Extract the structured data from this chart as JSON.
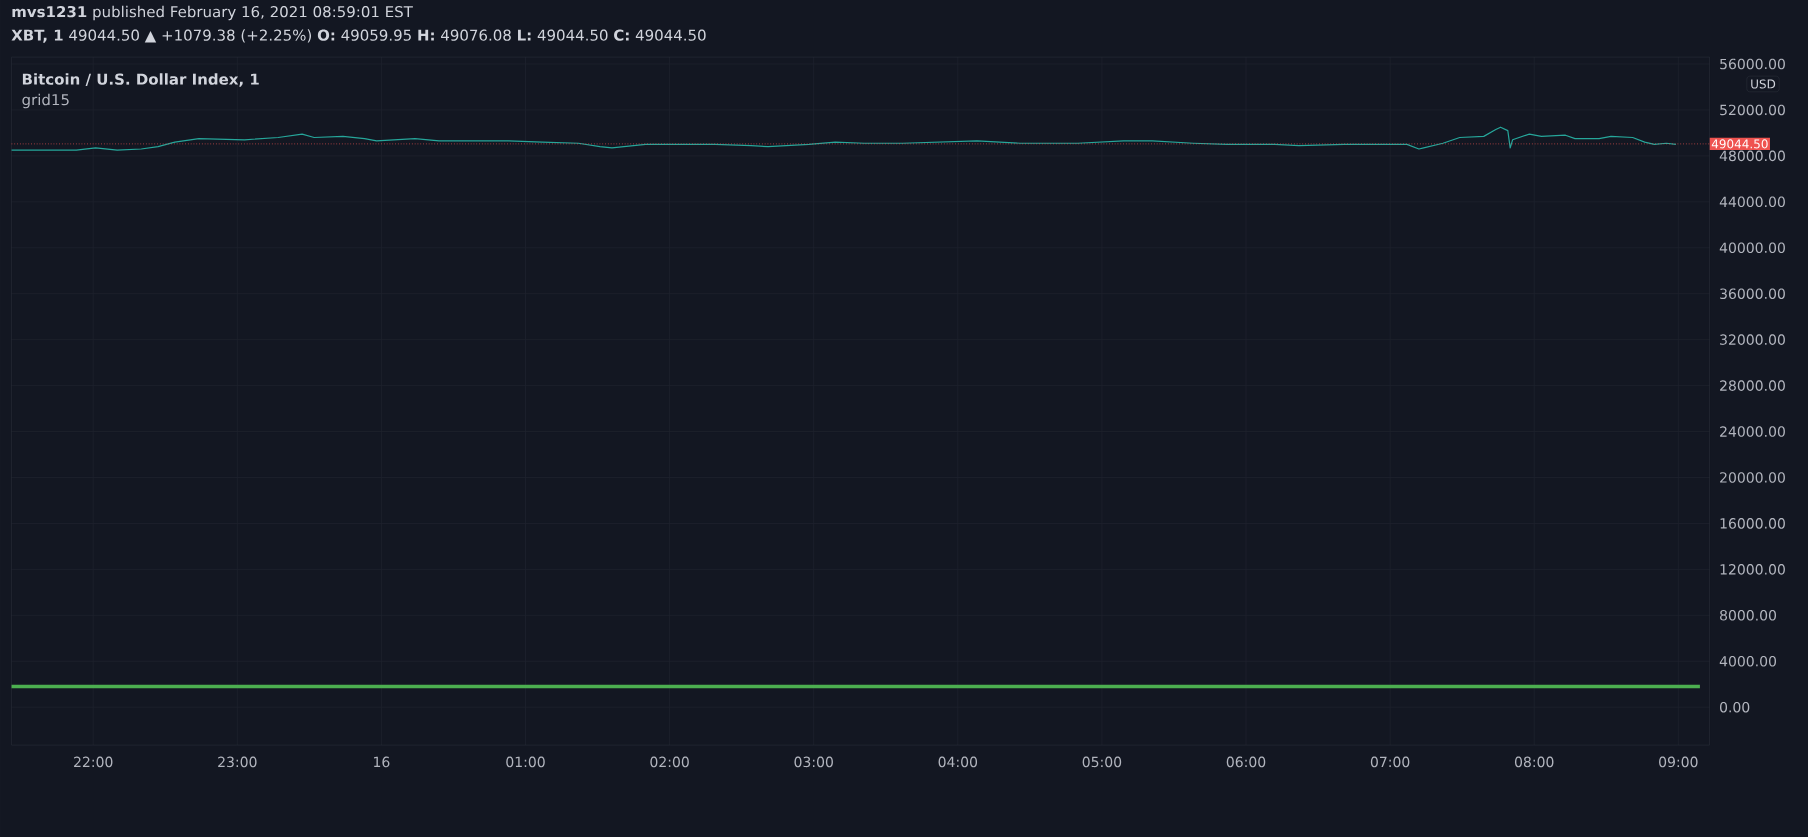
{
  "chart_data": {
    "type": "line",
    "title": "Bitcoin / U.S. Dollar Index, 1",
    "ylabel": "USD",
    "annotations": [
      "**mvs1231** published February 16, 2021 08:59:01 EST",
      "**XBT, 1** 49044.50 ▲ +1079.38 (+2.25%) **O:** 49059.95 **H:** 49076.08 **L:** 49044.50 **C:** 49044.50",
      "grid15"
    ],
    "xlim": [
      "2021-02-15T21:26",
      "2021-02-16T09:13"
    ],
    "ylim": [
      -3300,
      56600
    ],
    "xticks": [
      {
        "value": "2021-02-15T22:00",
        "label": "22:00"
      },
      {
        "value": "2021-02-15T23:00",
        "label": "23:00"
      },
      {
        "value": "2021-02-16T00:00",
        "label": "16"
      },
      {
        "value": "2021-02-16T01:00",
        "label": "01:00"
      },
      {
        "value": "2021-02-16T02:00",
        "label": "02:00"
      },
      {
        "value": "2021-02-16T03:00",
        "label": "03:00"
      },
      {
        "value": "2021-02-16T04:00",
        "label": "04:00"
      },
      {
        "value": "2021-02-16T05:00",
        "label": "05:00"
      },
      {
        "value": "2021-02-16T06:00",
        "label": "06:00"
      },
      {
        "value": "2021-02-16T07:00",
        "label": "07:00"
      },
      {
        "value": "2021-02-16T08:00",
        "label": "08:00"
      },
      {
        "value": "2021-02-16T09:00",
        "label": "09:00"
      }
    ],
    "yticks": [
      {
        "value": 0,
        "label": "0.00"
      },
      {
        "value": 4000,
        "label": "4000.00"
      },
      {
        "value": 8000,
        "label": "8000.00"
      },
      {
        "value": 12000,
        "label": "12000.00"
      },
      {
        "value": 16000,
        "label": "16000.00"
      },
      {
        "value": 20000,
        "label": "20000.00"
      },
      {
        "value": 24000,
        "label": "24000.00"
      },
      {
        "value": 28000,
        "label": "28000.00"
      },
      {
        "value": 32000,
        "label": "32000.00"
      },
      {
        "value": 36000,
        "label": "36000.00"
      },
      {
        "value": 40000,
        "label": "40000.00"
      },
      {
        "value": 44000,
        "label": "44000.00"
      },
      {
        "value": 48000,
        "label": "48000.00"
      },
      {
        "value": 52000,
        "label": "52000.00"
      },
      {
        "value": 56000,
        "label": "56000.00"
      }
    ],
    "grid": true,
    "ref_lines": [
      {
        "axis": "y",
        "value": 49044.5,
        "label": "49044.50",
        "color": "#ef5350",
        "line_style": "dotted"
      }
    ],
    "series": [
      {
        "color": "#26a69a",
        "x": [
          "2021-02-15T21:26",
          "2021-02-15T21:53",
          "2021-02-15T22:01",
          "2021-02-15T22:10",
          "2021-02-15T22:20",
          "2021-02-15T22:27",
          "2021-02-15T22:34",
          "2021-02-15T22:44",
          "2021-02-15T23:03",
          "2021-02-15T23:17",
          "2021-02-15T23:27",
          "2021-02-15T23:32",
          "2021-02-15T23:44",
          "2021-02-15T23:53",
          "2021-02-15T23:58",
          "2021-02-16T00:14",
          "2021-02-16T00:24",
          "2021-02-16T00:38",
          "2021-02-16T00:53",
          "2021-02-16T01:07",
          "2021-02-16T01:22",
          "2021-02-16T01:31",
          "2021-02-16T01:36",
          "2021-02-16T01:50",
          "2021-02-16T02:10",
          "2021-02-16T02:19",
          "2021-02-16T02:34",
          "2021-02-16T02:41",
          "2021-02-16T02:58",
          "2021-02-16T03:09",
          "2021-02-16T03:21",
          "2021-02-16T03:37",
          "2021-02-16T04:08",
          "2021-02-16T04:26",
          "2021-02-16T04:50",
          "2021-02-16T05:09",
          "2021-02-16T05:21",
          "2021-02-16T05:38",
          "2021-02-16T05:52",
          "2021-02-16T06:12",
          "2021-02-16T06:22",
          "2021-02-16T06:41",
          "2021-02-16T07:07",
          "2021-02-16T07:12",
          "2021-02-16T07:14",
          "2021-02-16T07:22",
          "2021-02-16T07:29",
          "2021-02-16T07:39",
          "2021-02-16T07:44",
          "2021-02-16T07:46",
          "2021-02-16T07:49",
          "2021-02-16T07:50",
          "2021-02-16T07:51",
          "2021-02-16T07:58",
          "2021-02-16T08:03",
          "2021-02-16T08:13",
          "2021-02-16T08:17",
          "2021-02-16T08:27",
          "2021-02-16T08:32",
          "2021-02-16T08:41",
          "2021-02-16T08:46",
          "2021-02-16T08:50",
          "2021-02-16T08:55",
          "2021-02-16T08:59"
        ],
        "values": [
          48500,
          48500,
          48700,
          48500,
          48600,
          48800,
          49200,
          49500,
          49400,
          49600,
          49900,
          49600,
          49700,
          49500,
          49300,
          49500,
          49300,
          49300,
          49300,
          49200,
          49100,
          48800,
          48700,
          49000,
          49000,
          49000,
          48900,
          48800,
          49000,
          49200,
          49100,
          49100,
          49300,
          49100,
          49100,
          49300,
          49300,
          49100,
          49000,
          49000,
          48900,
          49000,
          49000,
          48600,
          48700,
          49100,
          49600,
          49700,
          50300,
          50500,
          50200,
          48700,
          49400,
          49900,
          49700,
          49800,
          49500,
          49500,
          49700,
          49600,
          49200,
          49000,
          49100,
          49000
        ]
      },
      {
        "color": "#4caf50",
        "x": [
          "2021-02-15T21:26",
          "2021-02-16T09:09"
        ],
        "values": [
          1800,
          1800
        ]
      }
    ]
  }
}
